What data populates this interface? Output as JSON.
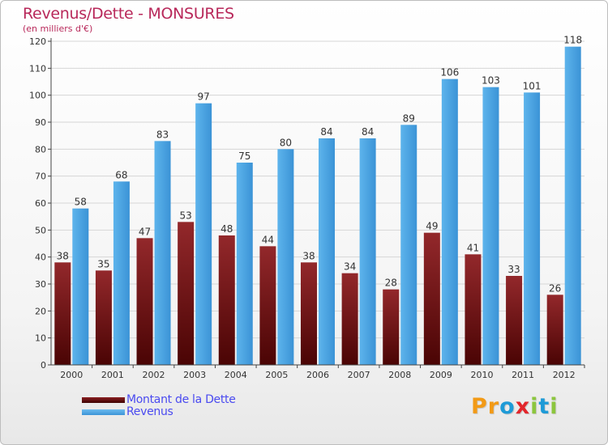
{
  "chart_data": {
    "type": "bar",
    "title": "Revenus/Dette - MONSURES",
    "subtitle": "(en milliers d'€)",
    "categories": [
      "2000",
      "2001",
      "2002",
      "2003",
      "2004",
      "2005",
      "2006",
      "2007",
      "2008",
      "2009",
      "2010",
      "2011",
      "2012"
    ],
    "series": [
      {
        "name": "Montant de la Dette",
        "values": [
          38,
          35,
          47,
          53,
          48,
          44,
          38,
          34,
          28,
          49,
          41,
          33,
          26
        ],
        "color": "#7a1416"
      },
      {
        "name": "Revenus",
        "values": [
          58,
          68,
          83,
          97,
          75,
          80,
          84,
          84,
          89,
          106,
          103,
          101,
          118
        ],
        "color": "#4aa3e0"
      }
    ],
    "ylim": [
      0,
      120
    ],
    "yticks": [
      0,
      10,
      20,
      30,
      40,
      50,
      60,
      70,
      80,
      90,
      100,
      110,
      120
    ],
    "grid": true,
    "legend_position": "bottom-left"
  },
  "legend": {
    "items": [
      {
        "label": "Montant de la Dette",
        "color": "#5a0a0a"
      },
      {
        "label": "Revenus",
        "color": "#4aa3e0"
      }
    ]
  },
  "logo": {
    "letters": [
      "P",
      "r",
      "o",
      "x",
      "i",
      "t",
      "i"
    ],
    "colors": [
      "#f29a16",
      "#f29a16",
      "#1e9bd7",
      "#e2262b",
      "#8cc63e",
      "#1e9bd7",
      "#8cc63e"
    ]
  }
}
